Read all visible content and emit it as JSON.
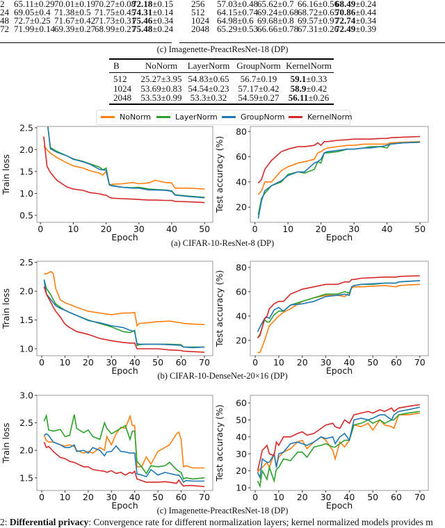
{
  "top_tables": {
    "left_rows": [
      [
        "2",
        "65.11±0.29",
        "70.01±0.19",
        "70.27±0.08",
        "72.18",
        "±0.15"
      ],
      [
        "24",
        "69.05±0.4",
        "71.38±0.5",
        "71.75±0.45",
        "74.31",
        "±0.14"
      ],
      [
        "48",
        "72.7±0.25",
        "71.67±0.42",
        "71.73±0.31",
        "75.46",
        "±0.34"
      ],
      [
        "72",
        "71.99±0.14",
        "69.39±0.27",
        "68.99±0.27",
        "75.48",
        "±0.24"
      ]
    ],
    "right_rows": [
      [
        "256",
        "57.03±0.48",
        "65.62±0.7",
        "66.16±0.56",
        "68.49",
        "±0.24"
      ],
      [
        "512",
        "64.15±0.74",
        "69.24±0.68",
        "68.72±0.65",
        "70.86",
        "±0.44"
      ],
      [
        "1024",
        "64.98±0.6",
        "69.68±0.8",
        "69.57±0.97",
        "72.74",
        "±0.34"
      ],
      [
        "2048",
        "65.29±0.53",
        "66.66±0.78",
        "67.31±0.26",
        "72.49",
        "±0.39"
      ]
    ],
    "caption": "(c) Imagenette-PreactResNet-18 (DP)"
  },
  "mid_table": {
    "headers": [
      "B",
      "NoNorm",
      "LayerNorm",
      "GroupNorm",
      "KernelNorm"
    ],
    "rows": [
      [
        "512",
        "25.27±3.95",
        "54.83±0.65",
        "56.7±0.19",
        "59.1",
        "±0.33"
      ],
      [
        "1024",
        "53.69±0.83",
        "54.54±0.23",
        "57.17±0.42",
        "58.9",
        "±0.42"
      ],
      [
        "2048",
        "53.53±0.99",
        "53.3±0.32",
        "54.59±0.27",
        "56.11",
        "±0.26"
      ]
    ]
  },
  "legend": [
    {
      "name": "NoNorm",
      "color": "#ff7f0e"
    },
    {
      "name": "LayerNorm",
      "color": "#2ca02c"
    },
    {
      "name": "GroupNorm",
      "color": "#1f77b4"
    },
    {
      "name": "KernelNorm",
      "color": "#d62728"
    }
  ],
  "captions": {
    "a": "(a) CIFAR-10-ResNet-8 (DP)",
    "b": "(b) CIFAR-10-DenseNet-20×16 (DP)",
    "c": "(c) Imagenette-PreactResNet-18 (DP)"
  },
  "figure_caption": {
    "prefix": "2: ",
    "bold": "Differential privacy",
    "text": ": Convergence rate for different normalization layers; kernel normalized models provides m"
  },
  "chart_data": [
    {
      "type": "line",
      "xlabel": "Epoch",
      "ylabel": "Train loss",
      "xlim": [
        -1.1,
        52.5
      ],
      "ylim": [
        0.34,
        2.53
      ],
      "xticks": [
        0,
        10,
        20,
        30,
        40,
        50
      ],
      "yticks": [
        "0.5",
        "1.0",
        "1.5",
        "2.0",
        "2.5"
      ],
      "x": [
        1,
        2,
        3,
        5,
        8,
        10,
        13,
        15,
        18,
        19,
        20,
        21,
        22,
        25,
        28,
        30,
        33,
        35,
        38,
        40,
        41,
        45,
        50
      ],
      "series": [
        {
          "name": "NoNorm",
          "values": [
            2.08,
            2.0,
            1.92,
            1.82,
            1.7,
            1.63,
            1.58,
            1.52,
            1.46,
            1.42,
            1.5,
            1.2,
            1.21,
            1.22,
            1.25,
            1.22,
            1.24,
            1.3,
            1.25,
            1.24,
            1.12,
            1.12,
            1.1
          ]
        },
        {
          "name": "LayerNorm",
          "values": [
            2.9,
            2.7,
            2.05,
            1.96,
            1.86,
            1.79,
            1.73,
            1.68,
            1.6,
            1.54,
            1.58,
            1.2,
            1.18,
            1.14,
            1.13,
            1.14,
            1.1,
            1.09,
            1.08,
            1.06,
            0.97,
            0.94,
            0.91
          ]
        },
        {
          "name": "GroupNorm",
          "values": [
            2.9,
            2.7,
            2.02,
            1.94,
            1.86,
            1.78,
            1.72,
            1.67,
            1.55,
            1.54,
            1.53,
            1.19,
            1.17,
            1.14,
            1.12,
            1.12,
            1.08,
            1.08,
            1.07,
            1.05,
            0.96,
            0.93,
            0.9
          ]
        },
        {
          "name": "KernelNorm",
          "values": [
            2.3,
            1.62,
            1.48,
            1.3,
            1.15,
            1.1,
            1.07,
            1.02,
            0.99,
            0.97,
            0.96,
            0.91,
            0.89,
            0.88,
            0.87,
            0.86,
            0.85,
            0.85,
            0.84,
            0.84,
            0.82,
            0.81,
            0.79
          ]
        }
      ]
    },
    {
      "type": "line",
      "xlabel": "Epoch",
      "ylabel": "Test accuracy (%)",
      "xlim": [
        -1.4,
        52.5
      ],
      "ylim": [
        8,
        84
      ],
      "xticks": [
        0,
        10,
        20,
        30,
        40,
        50
      ],
      "yticks": [
        "20",
        "40",
        "60",
        "80"
      ],
      "x": [
        1,
        2,
        3,
        5,
        8,
        10,
        13,
        15,
        18,
        19,
        20,
        21,
        22,
        25,
        28,
        30,
        33,
        35,
        38,
        40,
        41,
        45,
        50
      ],
      "series": [
        {
          "name": "NoNorm",
          "values": [
            30,
            33,
            40,
            40,
            49,
            52,
            55,
            56,
            58,
            63,
            64,
            66,
            67,
            68,
            69,
            69,
            70,
            70,
            70,
            70,
            71,
            71.5,
            72
          ]
        },
        {
          "name": "LayerNorm",
          "values": [
            14,
            27,
            31,
            37,
            40,
            46,
            48,
            47,
            50,
            56,
            55,
            63,
            63,
            64,
            66,
            66,
            67,
            68,
            68,
            67,
            70,
            71,
            71.5
          ]
        },
        {
          "name": "GroupNorm",
          "values": [
            11,
            25,
            33,
            37,
            41,
            45,
            48,
            48,
            55,
            56,
            58,
            63,
            64,
            65,
            66,
            66,
            67,
            67,
            68,
            69,
            70,
            71,
            71.5
          ]
        },
        {
          "name": "KernelNorm",
          "values": [
            39,
            42,
            50,
            57,
            64,
            66,
            68,
            68,
            69,
            71,
            69,
            72,
            72,
            73,
            73.5,
            74,
            74,
            74,
            74.5,
            74.5,
            75,
            75.5,
            76
          ]
        }
      ]
    },
    {
      "type": "line",
      "xlabel": "Epoch",
      "ylabel": "Train loss",
      "xlim": [
        -2.1,
        73.6
      ],
      "ylim": [
        0.88,
        2.52
      ],
      "xticks": [
        0,
        10,
        20,
        30,
        40,
        50,
        60,
        70
      ],
      "yticks": [
        "1.0",
        "1.5",
        "2.0",
        "2.5"
      ],
      "x": [
        1,
        2,
        4,
        5,
        6,
        8,
        10,
        12,
        15,
        20,
        25,
        30,
        35,
        38,
        40,
        41,
        42,
        45,
        50,
        55,
        60,
        61,
        65,
        70
      ],
      "series": [
        {
          "name": "NoNorm",
          "values": [
            2.3,
            2.3,
            2.34,
            2.3,
            2.05,
            1.85,
            1.8,
            1.77,
            1.72,
            1.65,
            1.62,
            1.59,
            1.62,
            1.62,
            1.63,
            1.4,
            1.44,
            1.45,
            1.47,
            1.48,
            1.45,
            1.44,
            1.43,
            1.42
          ]
        },
        {
          "name": "LayerNorm",
          "values": [
            2.2,
            2.05,
            1.93,
            1.85,
            1.78,
            1.72,
            1.67,
            1.63,
            1.58,
            1.5,
            1.44,
            1.38,
            1.3,
            1.28,
            1.32,
            1.06,
            1.07,
            1.08,
            1.08,
            1.08,
            1.07,
            1.03,
            1.03,
            1.03
          ]
        },
        {
          "name": "GroupNorm",
          "values": [
            2.2,
            1.95,
            1.85,
            1.8,
            1.75,
            1.7,
            1.67,
            1.63,
            1.58,
            1.49,
            1.45,
            1.4,
            1.37,
            1.32,
            1.3,
            1.09,
            1.08,
            1.08,
            1.08,
            1.07,
            1.06,
            1.03,
            1.02,
            1.03
          ]
        },
        {
          "name": "KernelNorm",
          "values": [
            2.08,
            1.95,
            1.8,
            1.72,
            1.65,
            1.55,
            1.43,
            1.37,
            1.3,
            1.25,
            1.18,
            1.14,
            1.11,
            1.1,
            1.1,
            1.0,
            1.0,
            1.0,
            1.0,
            0.98,
            0.97,
            0.96,
            0.95,
            0.94
          ]
        }
      ]
    },
    {
      "type": "line",
      "xlabel": "Epoch",
      "ylabel": "Test accuracy (%)",
      "xlim": [
        -2.1,
        73.6
      ],
      "ylim": [
        7.4,
        85
      ],
      "xticks": [
        0,
        10,
        20,
        30,
        40,
        50,
        60,
        70
      ],
      "yticks": [
        "20",
        "40",
        "60",
        "80"
      ],
      "x": [
        1,
        2,
        4,
        5,
        6,
        8,
        10,
        12,
        15,
        20,
        25,
        30,
        35,
        38,
        40,
        41,
        42,
        45,
        50,
        55,
        60,
        61,
        65,
        70
      ],
      "series": [
        {
          "name": "NoNorm",
          "values": [
            10,
            10,
            20,
            26,
            32,
            36,
            40,
            43,
            46,
            52,
            55,
            57,
            57,
            56,
            59,
            63,
            64,
            64,
            64.5,
            65,
            64,
            65,
            65.5,
            66
          ]
        },
        {
          "name": "LayerNorm",
          "values": [
            22,
            25,
            37,
            35,
            35,
            41,
            44,
            44,
            49,
            52,
            55,
            58,
            58,
            60,
            59,
            64,
            65,
            66,
            66,
            67,
            67,
            68,
            68.5,
            69
          ]
        },
        {
          "name": "GroupNorm",
          "values": [
            27,
            31,
            38,
            39,
            38,
            45,
            47,
            44,
            49,
            50,
            52,
            56,
            57,
            58,
            57,
            64,
            65,
            66,
            66.5,
            67,
            67,
            68,
            68.5,
            69
          ]
        },
        {
          "name": "KernelNorm",
          "values": [
            22,
            24,
            38,
            40,
            46,
            50,
            52,
            52,
            58,
            62,
            64,
            66,
            66,
            68,
            68,
            70,
            70,
            71,
            71.5,
            72,
            72,
            72.5,
            72.8,
            73
          ]
        }
      ]
    },
    {
      "type": "line",
      "xlabel": "Epoch",
      "ylabel": "Train loss",
      "xlim": [
        -2.1,
        73.6
      ],
      "ylim": [
        1.27,
        3.0
      ],
      "xticks": [
        0,
        10,
        20,
        30,
        40,
        50,
        60,
        70
      ],
      "yticks": [
        "1.5",
        "2.0",
        "2.5",
        "3.0"
      ],
      "x": [
        1,
        2,
        3,
        5,
        8,
        10,
        12,
        14,
        15,
        18,
        20,
        22,
        25,
        27,
        28,
        30,
        32,
        34,
        36,
        38,
        39,
        40,
        41,
        43,
        45,
        47,
        50,
        53,
        55,
        58,
        59,
        60,
        61,
        62,
        65,
        70
      ],
      "series": [
        {
          "name": "NoNorm",
          "values": [
            2.27,
            2.18,
            2.15,
            2.15,
            2.1,
            2.08,
            2.1,
            2.07,
            2.0,
            1.95,
            1.98,
            1.95,
            2.05,
            2.0,
            2.25,
            2.1,
            2.3,
            2.42,
            2.4,
            2.62,
            2.45,
            2.45,
            1.7,
            1.7,
            1.88,
            1.75,
            1.98,
            2.05,
            2.1,
            2.3,
            2.33,
            2.2,
            1.7,
            1.72,
            1.68,
            1.68
          ]
        },
        {
          "name": "LayerNorm",
          "values": [
            2.53,
            2.63,
            2.37,
            2.35,
            2.38,
            2.25,
            2.27,
            2.65,
            2.4,
            2.32,
            2.37,
            2.25,
            2.2,
            2.5,
            2.4,
            2.3,
            2.35,
            2.4,
            2.45,
            2.2,
            2.35,
            2.35,
            1.8,
            1.7,
            1.58,
            1.72,
            1.7,
            1.72,
            1.78,
            1.65,
            1.62,
            1.6,
            1.48,
            1.5,
            1.48,
            1.5
          ]
        },
        {
          "name": "GroupNorm",
          "values": [
            2.27,
            2.3,
            2.27,
            2.15,
            2.1,
            2.05,
            2.05,
            2.1,
            1.98,
            2.0,
            1.95,
            2.05,
            2.0,
            1.9,
            1.97,
            1.98,
            2.08,
            1.98,
            1.97,
            1.95,
            1.95,
            1.95,
            1.57,
            1.55,
            1.52,
            1.65,
            1.55,
            1.6,
            1.58,
            1.55,
            1.55,
            1.5,
            1.42,
            1.45,
            1.44,
            1.44
          ]
        },
        {
          "name": "KernelNorm",
          "values": [
            2.15,
            2.05,
            2.07,
            1.98,
            1.87,
            1.85,
            1.8,
            1.78,
            1.76,
            1.7,
            1.7,
            1.65,
            1.63,
            1.62,
            1.6,
            1.63,
            1.58,
            1.6,
            1.55,
            1.6,
            1.58,
            1.62,
            1.48,
            1.45,
            1.42,
            1.42,
            1.42,
            1.43,
            1.42,
            1.4,
            1.46,
            1.4,
            1.35,
            1.36,
            1.36,
            1.34
          ]
        }
      ]
    },
    {
      "type": "line",
      "xlabel": "Epoch",
      "ylabel": "Test accuracy (%)",
      "xlim": [
        -2.1,
        73.6
      ],
      "ylim": [
        8.4,
        64.5
      ],
      "xticks": [
        0,
        10,
        20,
        30,
        40,
        50,
        60,
        70
      ],
      "yticks": [
        "10",
        "20",
        "30",
        "40",
        "50",
        "60"
      ],
      "x": [
        1,
        2,
        3,
        5,
        6,
        8,
        9,
        10,
        12,
        15,
        18,
        20,
        22,
        25,
        28,
        30,
        33,
        34,
        36,
        38,
        40,
        42,
        45,
        48,
        50,
        53,
        55,
        58,
        59,
        61,
        65,
        70
      ],
      "series": [
        {
          "name": "NoNorm",
          "values": [
            19,
            21,
            22,
            25,
            22,
            30,
            23,
            28,
            31,
            33,
            37,
            38,
            33,
            37,
            40,
            38,
            32,
            27,
            37,
            34,
            38,
            47,
            46,
            48,
            44,
            50,
            47,
            46,
            45,
            53,
            53,
            54
          ]
        },
        {
          "name": "LayerNorm",
          "values": [
            14,
            11,
            20,
            15,
            22,
            14,
            21,
            22,
            27,
            26,
            31,
            31,
            28,
            34,
            35,
            36,
            34,
            34,
            36,
            38,
            38,
            47,
            48,
            50,
            48,
            50,
            48,
            50,
            50,
            53,
            54,
            55
          ]
        },
        {
          "name": "GroupNorm",
          "values": [
            19,
            16,
            27,
            25,
            25,
            30,
            22,
            30,
            31,
            36,
            37,
            36,
            35,
            37,
            40,
            39,
            40,
            36,
            40,
            42,
            38,
            50,
            51,
            50,
            51,
            53,
            53,
            50,
            53,
            55,
            56,
            57.5
          ]
        },
        {
          "name": "KernelNorm",
          "values": [
            20,
            26,
            32,
            35,
            30,
            29,
            37,
            35,
            40,
            40,
            42,
            43,
            41,
            42,
            45,
            47,
            48,
            46,
            45,
            50,
            48,
            53,
            54,
            55,
            54,
            56,
            55,
            57,
            55,
            57,
            58,
            59
          ]
        }
      ]
    }
  ]
}
